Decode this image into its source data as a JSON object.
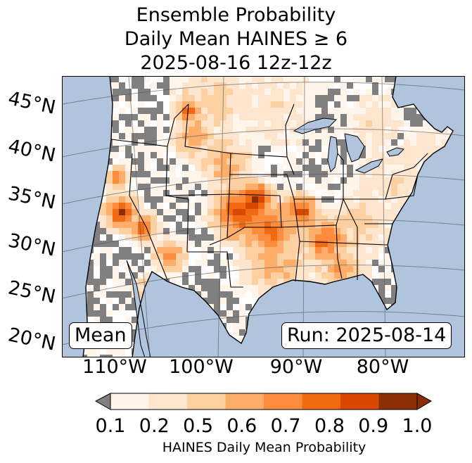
{
  "title": {
    "line1": "Ensemble Probability",
    "line2": "Daily Mean HAINES ≥ 6",
    "line3": "2025-08-16 12z-12z"
  },
  "map": {
    "lat_labels": [
      "45°N",
      "40°N",
      "35°N",
      "30°N",
      "25°N",
      "20°N"
    ],
    "lon_labels": [
      "110°W",
      "100°W",
      "90°W",
      "80°W"
    ],
    "mean_label": "Mean",
    "run_label": "Run: 2025-08-14",
    "colors": {
      "ocean": "#b0c4de",
      "no_data": "#808080",
      "land_zero": "#ffffff"
    }
  },
  "colorbar": {
    "label": "HAINES Daily Mean Probability",
    "ticks": [
      "0.1",
      "0.2",
      "0.5",
      "0.6",
      "0.7",
      "0.8",
      "0.9",
      "1.0"
    ],
    "colors": [
      "#fff5eb",
      "#fee6ce",
      "#fdd0a2",
      "#fdae6b",
      "#fd8d3c",
      "#f16913",
      "#d94801",
      "#8c2d04"
    ],
    "under_color": "#808080"
  }
}
